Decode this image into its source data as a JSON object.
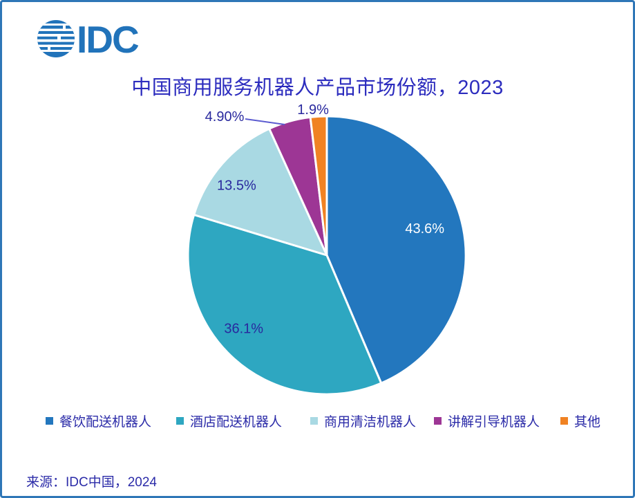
{
  "window": {
    "border_color": "#2E76B7",
    "background": "#FFFFFF"
  },
  "logo": {
    "brand": "IDC",
    "color": "#2173BA"
  },
  "title": {
    "text": "中国商用服务机器人产品市场份额，2023",
    "color": "#2C2CBE"
  },
  "chart_data": {
    "type": "pie",
    "title": "中国商用服务机器人产品市场份额，2023",
    "start_angle_deg": 0,
    "direction": "clockwise",
    "donut": false,
    "legend_position": "bottom",
    "separator_color": "#FFFFFF",
    "callout_line_color": "#5B5BD0",
    "slices": [
      {
        "label": "餐饮配送机器人",
        "value": 43.6,
        "display": "43.6%",
        "color": "#2377BE",
        "label_color": "#FFFFFF",
        "label_placement": "inside"
      },
      {
        "label": "酒店配送机器人",
        "value": 36.1,
        "display": "36.1%",
        "color": "#2EA7C1",
        "label_color": "#29299E",
        "label_placement": "inside"
      },
      {
        "label": "商用清洁机器人",
        "value": 13.5,
        "display": "13.5%",
        "color": "#A9D9E3",
        "label_color": "#29299E",
        "label_placement": "inside"
      },
      {
        "label": "讲解引导机器人",
        "value": 4.9,
        "display": "4.90%",
        "color": "#9D3695",
        "label_color": "#29299E",
        "label_placement": "outside-callout"
      },
      {
        "label": "其他",
        "value": 1.9,
        "display": "1.9%",
        "color": "#F08223",
        "label_color": "#29299E",
        "label_placement": "outside"
      }
    ]
  },
  "source": {
    "text": "来源：IDC中国，2024"
  }
}
